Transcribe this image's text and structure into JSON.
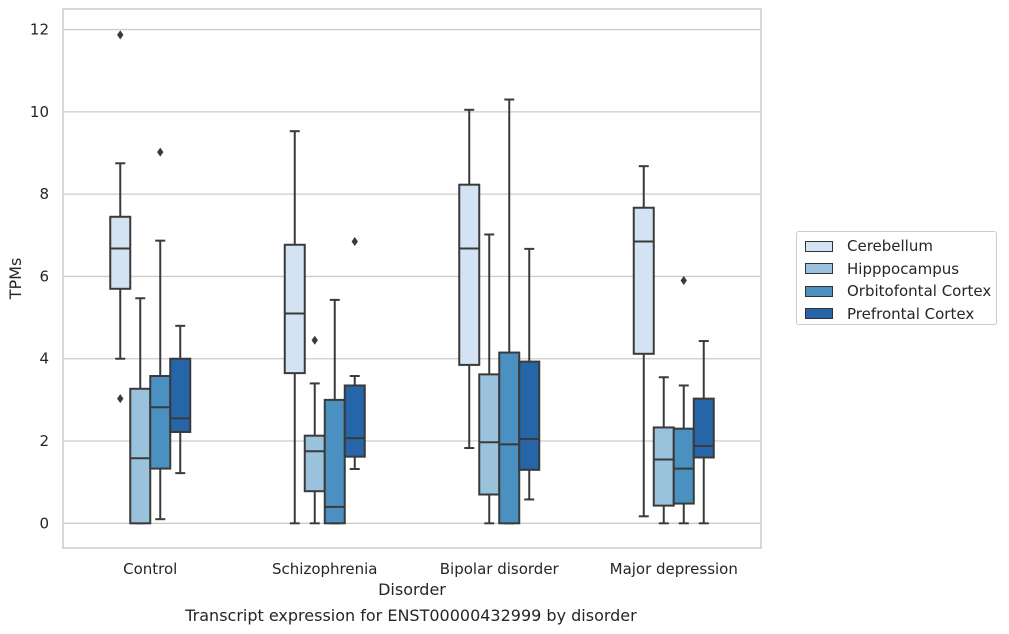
{
  "chart_data": {
    "type": "box",
    "xlabel": "Disorder",
    "ylabel": "TPMs",
    "caption": "Transcript expression for ENST00000432999 by disorder",
    "ylim": [
      -0.6,
      12.5
    ],
    "yticks": [
      0,
      2,
      4,
      6,
      8,
      10,
      12
    ],
    "grid": true,
    "legend_placement": "right-outside",
    "categories": [
      "Control",
      "Schizophrenia",
      "Bipolar disorder",
      "Major depression"
    ],
    "series": [
      {
        "name": "Cerebellum",
        "color": "#d3e3f3",
        "boxes": [
          {
            "whislo": 4.0,
            "q1": 5.7,
            "med": 6.68,
            "q3": 7.45,
            "whishi": 8.75,
            "fliers": [
              11.87,
              3.03
            ]
          },
          {
            "whislo": 0.0,
            "q1": 3.65,
            "med": 5.1,
            "q3": 6.77,
            "whishi": 9.53,
            "fliers": []
          },
          {
            "whislo": 1.83,
            "q1": 3.85,
            "med": 6.68,
            "q3": 8.23,
            "whishi": 10.05,
            "fliers": []
          },
          {
            "whislo": 0.17,
            "q1": 4.12,
            "med": 6.85,
            "q3": 7.67,
            "whishi": 8.68,
            "fliers": []
          }
        ]
      },
      {
        "name": "Hipppocampus",
        "color": "#9ac2dc",
        "boxes": [
          {
            "whislo": 0.0,
            "q1": 0.0,
            "med": 1.58,
            "q3": 3.27,
            "whishi": 5.47,
            "fliers": []
          },
          {
            "whislo": 0.0,
            "q1": 0.78,
            "med": 1.75,
            "q3": 2.13,
            "whishi": 3.4,
            "fliers": [
              4.45
            ]
          },
          {
            "whislo": 0.0,
            "q1": 0.7,
            "med": 1.97,
            "q3": 3.62,
            "whishi": 7.02,
            "fliers": []
          },
          {
            "whislo": 0.0,
            "q1": 0.43,
            "med": 1.55,
            "q3": 2.33,
            "whishi": 3.55,
            "fliers": []
          }
        ]
      },
      {
        "name": "Orbitofontal Cortex",
        "color": "#4a90c0",
        "boxes": [
          {
            "whislo": 0.1,
            "q1": 1.33,
            "med": 2.82,
            "q3": 3.58,
            "whishi": 6.87,
            "fliers": [
              9.02
            ]
          },
          {
            "whislo": 0.0,
            "q1": 0.0,
            "med": 0.4,
            "q3": 3.0,
            "whishi": 5.43,
            "fliers": []
          },
          {
            "whislo": 0.0,
            "q1": 0.0,
            "med": 1.92,
            "q3": 4.15,
            "whishi": 10.3,
            "fliers": []
          },
          {
            "whislo": 0.0,
            "q1": 0.48,
            "med": 1.33,
            "q3": 2.3,
            "whishi": 3.35,
            "fliers": [
              5.9
            ]
          }
        ]
      },
      {
        "name": "Prefrontal Cortex",
        "color": "#2565a8",
        "boxes": [
          {
            "whislo": 1.22,
            "q1": 2.22,
            "med": 2.55,
            "q3": 4.0,
            "whishi": 4.8,
            "fliers": []
          },
          {
            "whislo": 1.32,
            "q1": 1.62,
            "med": 2.07,
            "q3": 3.35,
            "whishi": 3.58,
            "fliers": [
              6.85
            ]
          },
          {
            "whislo": 0.58,
            "q1": 1.3,
            "med": 2.05,
            "q3": 3.93,
            "whishi": 6.67,
            "fliers": []
          },
          {
            "whislo": 0.0,
            "q1": 1.6,
            "med": 1.88,
            "q3": 3.03,
            "whishi": 4.43,
            "fliers": []
          }
        ]
      }
    ]
  }
}
